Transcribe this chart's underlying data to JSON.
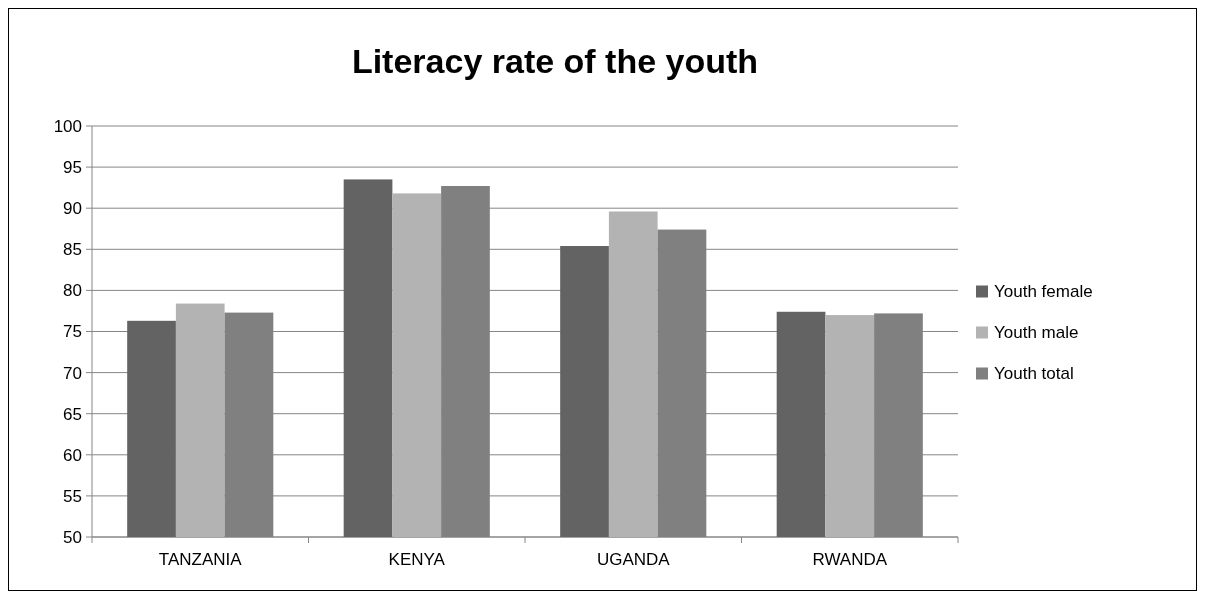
{
  "chart_data": {
    "type": "bar",
    "title": "Literacy rate of the youth",
    "categories": [
      "TANZANIA",
      "KENYA",
      "UGANDA",
      "RWANDA"
    ],
    "series": [
      {
        "name": "Youth female",
        "color": "#636363",
        "values": [
          76.3,
          93.5,
          85.4,
          77.4
        ]
      },
      {
        "name": "Youth male",
        "color": "#b3b3b3",
        "values": [
          78.4,
          91.8,
          89.6,
          77.0
        ]
      },
      {
        "name": "Youth total",
        "color": "#808080",
        "values": [
          77.3,
          92.7,
          87.4,
          77.2
        ]
      }
    ],
    "ylim": [
      50,
      100
    ],
    "yticks": [
      50,
      55,
      60,
      65,
      70,
      75,
      80,
      85,
      90,
      95,
      100
    ],
    "grid": "y",
    "legend": "right"
  }
}
